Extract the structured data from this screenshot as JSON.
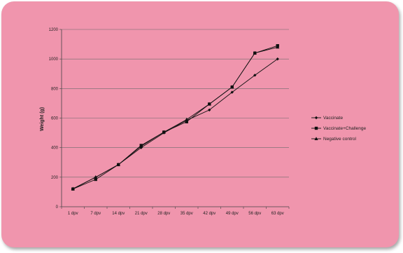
{
  "chart_data": {
    "type": "line",
    "categories": [
      "1 dpv",
      "7 dpv",
      "14 dpv",
      "21 dpv",
      "28 dpv",
      "35 dpv",
      "42 dpv",
      "49 dpv",
      "56 dpv",
      "63 dpv"
    ],
    "series": [
      {
        "name": "Vaccinate",
        "marker": "diamond",
        "values": [
          120,
          200,
          285,
          400,
          500,
          585,
          655,
          775,
          890,
          1000
        ]
      },
      {
        "name": "Vaccinate+Challenge",
        "marker": "square",
        "values": [
          120,
          185,
          285,
          415,
          505,
          575,
          695,
          810,
          1040,
          1090
        ]
      },
      {
        "name": "Negative control",
        "marker": "triangle",
        "values": [
          122,
          200,
          285,
          410,
          505,
          590,
          695,
          810,
          1040,
          1080
        ]
      }
    ],
    "ylabel": "Weight (g)",
    "xlabel": "",
    "ylim": [
      0,
      1200
    ],
    "yticks": [
      0,
      200,
      400,
      600,
      800,
      1000,
      1200
    ],
    "grid": true,
    "legend": "right"
  }
}
